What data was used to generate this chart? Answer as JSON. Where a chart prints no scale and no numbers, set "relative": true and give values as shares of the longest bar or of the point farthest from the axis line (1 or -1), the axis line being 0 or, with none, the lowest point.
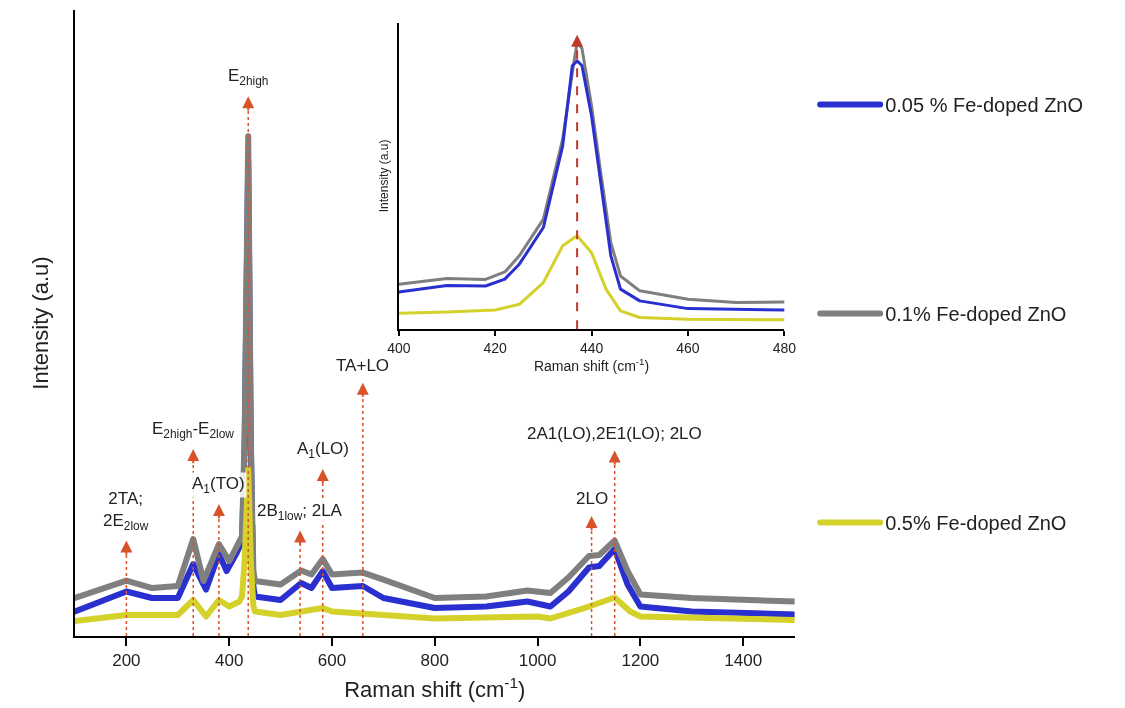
{
  "chart_data": [
    {
      "type": "line",
      "xlabel": "Raman shift (cm$^{-1}$)",
      "ylabel": "Intensity (a.u)",
      "relative": true,
      "xlim": [
        100,
        1500
      ],
      "xticks": [
        200,
        400,
        600,
        800,
        1000,
        1200,
        1400
      ],
      "tick_labels": "x",
      "legend": "right",
      "marker": "none",
      "line_style": "solid",
      "series": [
        {
          "name": "0.05 % Fe-doped ZnO",
          "color": "#2a2fd0",
          "x": [
            100,
            200,
            250,
            300,
            330,
            355,
            380,
            395,
            415,
            425,
            430,
            437,
            442,
            447,
            450,
            500,
            540,
            560,
            582,
            600,
            660,
            700,
            800,
            900,
            980,
            1025,
            1060,
            1100,
            1120,
            1150,
            1175,
            1200,
            1300,
            1500
          ],
          "values": [
            0.049,
            0.089,
            0.076,
            0.076,
            0.144,
            0.093,
            0.164,
            0.13,
            0.167,
            0.19,
            0.38,
            0.95,
            0.38,
            0.1,
            0.079,
            0.072,
            0.106,
            0.096,
            0.13,
            0.096,
            0.1,
            0.076,
            0.056,
            0.059,
            0.069,
            0.059,
            0.089,
            0.137,
            0.14,
            0.174,
            0.103,
            0.059,
            0.049,
            0.043
          ]
        },
        {
          "name": "0.1% Fe-doped ZnO",
          "color": "#7f7f7f",
          "x": [
            100,
            200,
            250,
            300,
            330,
            350,
            380,
            400,
            415,
            425,
            430,
            437,
            442,
            447,
            450,
            500,
            540,
            560,
            582,
            600,
            660,
            700,
            800,
            900,
            980,
            1025,
            1060,
            1100,
            1120,
            1150,
            1175,
            1200,
            1300,
            1500
          ],
          "values": [
            0.076,
            0.111,
            0.096,
            0.1,
            0.194,
            0.11,
            0.184,
            0.15,
            0.18,
            0.2,
            0.4,
            1.0,
            0.4,
            0.13,
            0.11,
            0.103,
            0.131,
            0.123,
            0.154,
            0.123,
            0.127,
            0.113,
            0.076,
            0.079,
            0.091,
            0.086,
            0.117,
            0.16,
            0.162,
            0.191,
            0.13,
            0.083,
            0.076,
            0.069
          ]
        },
        {
          "name": "0.5% Fe-doped ZnO",
          "color": "#d4d12a",
          "x": [
            100,
            200,
            300,
            330,
            355,
            380,
            400,
            420,
            425,
            430,
            437,
            442,
            447,
            450,
            500,
            582,
            600,
            700,
            800,
            1000,
            1025,
            1100,
            1150,
            1180,
            1200,
            1500
          ],
          "values": [
            0.03,
            0.042,
            0.042,
            0.072,
            0.039,
            0.072,
            0.059,
            0.069,
            0.08,
            0.15,
            0.333,
            0.15,
            0.06,
            0.049,
            0.042,
            0.056,
            0.049,
            0.042,
            0.035,
            0.039,
            0.035,
            0.059,
            0.077,
            0.049,
            0.039,
            0.032
          ]
        }
      ],
      "ref_lines": [
        {
          "axis": "x",
          "value": 200,
          "label": "2TA;\n2E$_{2low}$",
          "color": "#d9532a",
          "line_style": "dotted"
        },
        {
          "axis": "x",
          "value": 330,
          "label": "E$_{2high}$-E$_{2low}$",
          "color": "#d9532a",
          "line_style": "dotted"
        },
        {
          "axis": "x",
          "value": 380,
          "label": "A$_{1}$(TO)",
          "color": "#d9532a",
          "line_style": "dotted"
        },
        {
          "axis": "x",
          "value": 437,
          "label": "E$_{2high}$",
          "color": "#d9532a",
          "line_style": "dotted"
        },
        {
          "axis": "x",
          "value": 538,
          "label": "2B$_{1low}$; 2LA",
          "color": "#d9532a",
          "line_style": "dotted"
        },
        {
          "axis": "x",
          "value": 582,
          "label": "A$_{1}$(LO)",
          "color": "#d9532a",
          "line_style": "dotted"
        },
        {
          "axis": "x",
          "value": 660,
          "label": "TA+LO",
          "color": "#d9532a",
          "line_style": "dotted"
        },
        {
          "axis": "x",
          "value": 1105,
          "label": "2LO",
          "color": "#d9532a",
          "line_style": "dotted"
        },
        {
          "axis": "x",
          "value": 1150,
          "label": "2A1(LO),2E1(LO); 2LO",
          "color": "#d9532a",
          "line_style": "dotted"
        }
      ]
    },
    {
      "type": "line",
      "xlabel": "Raman shift (cm$^{-1}$)",
      "ylabel": "Intensity (a.u)",
      "relative": true,
      "xlim": [
        400,
        480
      ],
      "xticks": [
        400,
        420,
        440,
        460,
        480
      ],
      "tick_labels": "x",
      "marker": "none",
      "line_style": "solid",
      "series": [
        {
          "color": "#7f7f7f",
          "x": [
            400,
            410,
            418,
            422,
            425,
            430,
            434,
            436,
            437,
            438,
            440,
            442,
            444,
            446,
            450,
            460,
            470,
            480
          ],
          "values": [
            0.157,
            0.177,
            0.174,
            0.2,
            0.256,
            0.384,
            0.663,
            0.895,
            1.0,
            0.98,
            0.779,
            0.535,
            0.302,
            0.186,
            0.134,
            0.105,
            0.093,
            0.095
          ]
        },
        {
          "color": "#2a2fd0",
          "x": [
            400,
            410,
            418,
            422,
            425,
            430,
            434,
            436,
            437,
            438,
            440,
            442,
            444,
            446,
            450,
            460,
            480
          ],
          "values": [
            0.13,
            0.153,
            0.151,
            0.175,
            0.227,
            0.355,
            0.64,
            0.919,
            0.936,
            0.92,
            0.744,
            0.5,
            0.256,
            0.14,
            0.099,
            0.072,
            0.067
          ]
        },
        {
          "color": "#d4d12a",
          "x": [
            400,
            410,
            420,
            425,
            430,
            434,
            437,
            440,
            443,
            446,
            450,
            460,
            480
          ],
          "values": [
            0.056,
            0.06,
            0.067,
            0.087,
            0.163,
            0.291,
            0.326,
            0.267,
            0.14,
            0.064,
            0.041,
            0.035,
            0.033
          ]
        }
      ],
      "ref_lines": [
        {
          "axis": "x",
          "value": 437,
          "color": "#c0392b",
          "line_style": "dashed"
        }
      ]
    }
  ]
}
